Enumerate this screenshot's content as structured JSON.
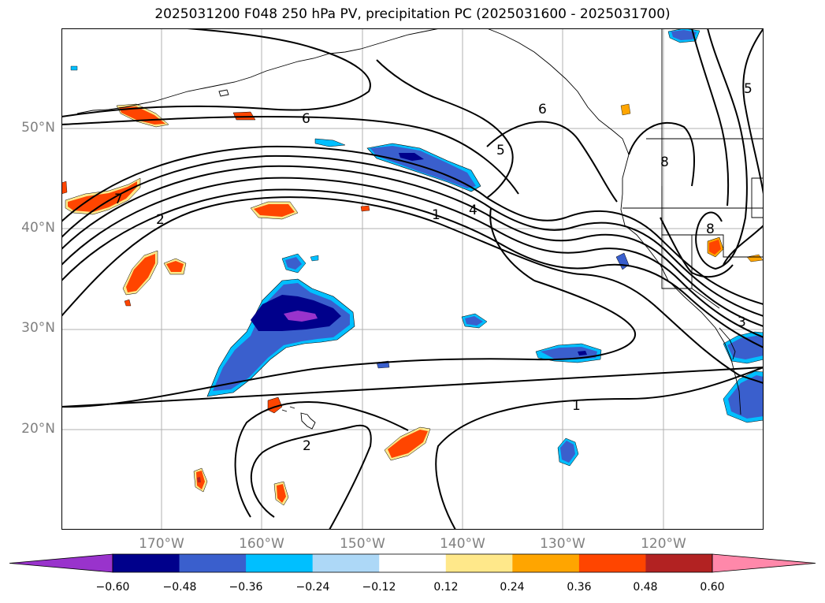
{
  "title": "2025031200 F048 250 hPa PV, precipitation PC (2025031600 - 2025031700)",
  "map": {
    "lon_range": [
      -180,
      -110
    ],
    "lat_range": [
      10,
      60
    ],
    "lat_labels": [
      "50°N",
      "40°N",
      "30°N",
      "20°N"
    ],
    "lat_values": [
      50,
      40,
      30,
      20
    ],
    "lon_labels": [
      "170°W",
      "160°W",
      "150°W",
      "140°W",
      "130°W",
      "120°W"
    ],
    "lon_values": [
      -170,
      -160,
      -150,
      -140,
      -130,
      -120
    ],
    "contour_labels": [
      "6",
      "6",
      "5",
      "5",
      "4",
      "1",
      "2",
      "7",
      "8",
      "8",
      "3",
      "1",
      "2"
    ]
  },
  "colorbar": {
    "ticks": [
      "−0.60",
      "−0.48",
      "−0.36",
      "−0.24",
      "−0.12",
      "0.12",
      "0.24",
      "0.36",
      "0.48",
      "0.60"
    ],
    "colors": [
      "#9933cc",
      "#00008b",
      "#3a5fcd",
      "#00bfff",
      "#add8f7",
      "#ffffff",
      "#ffe88a",
      "#ffa500",
      "#ff4500",
      "#b22222",
      "#ff88aa"
    ]
  }
}
